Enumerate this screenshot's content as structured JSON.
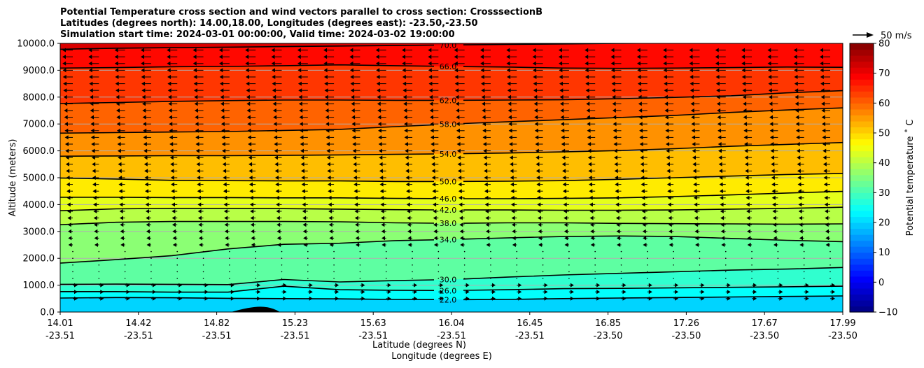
{
  "chart_data": {
    "type": "heatmap",
    "title_lines": [
      "Potential Temperature cross section and wind vectors parallel to cross section: CrosssectionB",
      "Latitudes (degrees north): 14.00,18.00, Longitudes (degrees east): -23.50,-23.50",
      "Simulation start time: 2024-03-01 00:00:00, Valid time: 2024-03-02 19:00:00"
    ],
    "xlabel_lat": "Latitude (degrees N)",
    "xlabel_lon": "Longitude (degrees E)",
    "ylabel": "Altitude (meters)",
    "x_ticks": [
      {
        "lat": "14.01",
        "lon": "-23.51"
      },
      {
        "lat": "14.42",
        "lon": "-23.51"
      },
      {
        "lat": "14.82",
        "lon": "-23.51"
      },
      {
        "lat": "15.23",
        "lon": "-23.51"
      },
      {
        "lat": "15.63",
        "lon": "-23.51"
      },
      {
        "lat": "16.04",
        "lon": "-23.51"
      },
      {
        "lat": "16.45",
        "lon": "-23.51"
      },
      {
        "lat": "16.85",
        "lon": "-23.50"
      },
      {
        "lat": "17.26",
        "lon": "-23.50"
      },
      {
        "lat": "17.67",
        "lon": "-23.50"
      },
      {
        "lat": "17.99",
        "lon": "-23.50"
      }
    ],
    "y_ticks": [
      "0.0",
      "1000.0",
      "2000.0",
      "3000.0",
      "4000.0",
      "5000.0",
      "6000.0",
      "7000.0",
      "8000.0",
      "9000.0",
      "10000.0"
    ],
    "ylim": [
      0,
      10000
    ],
    "grid": "horizontal",
    "colorbar": {
      "label": "Potential temperature $^\\circ$C",
      "label_display": "Potential temperature ˚ C",
      "ticks": [
        "−10",
        "0",
        "10",
        "20",
        "30",
        "40",
        "50",
        "60",
        "70",
        "80"
      ],
      "range": [
        -10,
        80
      ],
      "colormap": "jet"
    },
    "quiver_key": {
      "label": "50 m/s"
    },
    "contours": [
      {
        "label": "22.0",
        "y": [
          520,
          540,
          530,
          510,
          500,
          490,
          470,
          460,
          470,
          500,
          520,
          540,
          560,
          580,
          600
        ]
      },
      {
        "label": "26.0",
        "y": [
          760,
          760,
          740,
          740,
          960,
          830,
          810,
          800,
          830,
          870,
          880,
          900,
          920,
          940,
          960
        ]
      },
      {
        "label": "30.0",
        "y": [
          1030,
          1040,
          1030,
          1020,
          1210,
          1120,
          1170,
          1210,
          1300,
          1380,
          1440,
          1500,
          1560,
          1600,
          1660
        ]
      },
      {
        "label": "34.0",
        "y": [
          1820,
          1950,
          2100,
          2350,
          2520,
          2560,
          2660,
          2700,
          2760,
          2810,
          2830,
          2810,
          2740,
          2670,
          2620
        ]
      },
      {
        "label": "38.0",
        "y": [
          3250,
          3340,
          3370,
          3370,
          3370,
          3360,
          3320,
          3300,
          3320,
          3320,
          3300,
          3290,
          3280,
          3270,
          3280
        ]
      },
      {
        "label": "42.0",
        "y": [
          3770,
          3840,
          3860,
          3860,
          3850,
          3830,
          3810,
          3800,
          3800,
          3790,
          3790,
          3800,
          3830,
          3860,
          3900
        ]
      },
      {
        "label": "46.0",
        "y": [
          4270,
          4270,
          4260,
          4260,
          4250,
          4250,
          4230,
          4220,
          4220,
          4230,
          4250,
          4300,
          4360,
          4430,
          4490
        ]
      },
      {
        "label": "50.0",
        "y": [
          4990,
          4950,
          4900,
          4890,
          4880,
          4880,
          4860,
          4860,
          4870,
          4890,
          4940,
          5000,
          5060,
          5120,
          5160
        ]
      },
      {
        "label": "54.0",
        "y": [
          5800,
          5810,
          5820,
          5820,
          5830,
          5850,
          5870,
          5890,
          5920,
          5960,
          6010,
          6080,
          6170,
          6240,
          6310
        ]
      },
      {
        "label": "58.0",
        "y": [
          6660,
          6680,
          6700,
          6720,
          6760,
          6800,
          6900,
          7000,
          7080,
          7160,
          7240,
          7320,
          7430,
          7520,
          7600
        ]
      },
      {
        "label": "62.0",
        "y": [
          7760,
          7800,
          7840,
          7870,
          7890,
          7890,
          7880,
          7880,
          7890,
          7900,
          7940,
          7990,
          8050,
          8160,
          8240
        ]
      },
      {
        "label": "66.0",
        "y": [
          9080,
          9100,
          9130,
          9140,
          9170,
          9200,
          9170,
          9140,
          9120,
          9080,
          9070,
          9080,
          9100,
          9120,
          9110
        ]
      },
      {
        "label": "70.0",
        "y": [
          9780,
          9820,
          9840,
          9860,
          9880,
          9900,
          9920,
          9940,
          9960,
          9980,
          10000,
          10020,
          10020,
          10020,
          10020
        ]
      }
    ],
    "terrain": {
      "peak_height": 200
    }
  }
}
